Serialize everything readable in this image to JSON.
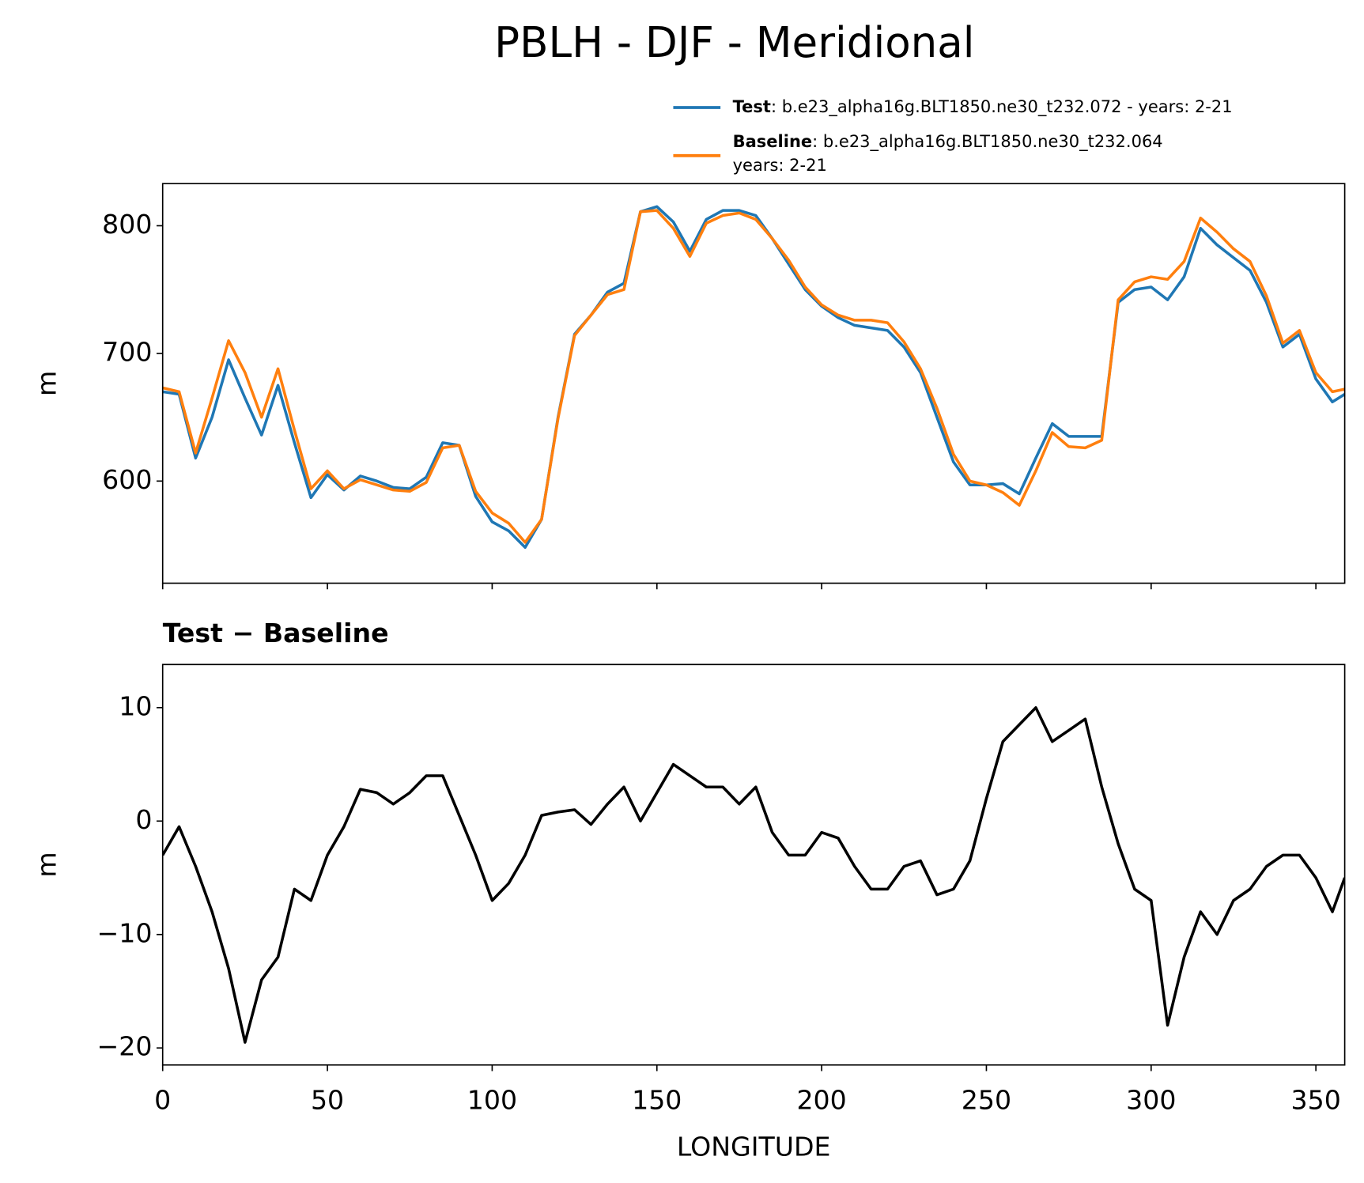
{
  "title": "PBLH - DJF - Meridional",
  "chart_data": [
    {
      "type": "line",
      "ylabel": "m",
      "xlim": [
        0,
        358.75
      ],
      "ylim": [
        520,
        833
      ],
      "xticks": [
        0,
        50,
        100,
        150,
        200,
        250,
        300,
        350
      ],
      "xtick_labels": false,
      "yticks": [
        600,
        700,
        800
      ],
      "x": [
        0,
        5,
        10,
        15,
        20,
        25,
        30,
        35,
        40,
        45,
        50,
        55,
        60,
        65,
        70,
        75,
        80,
        85,
        90,
        95,
        100,
        105,
        110,
        115,
        120,
        125,
        130,
        135,
        140,
        145,
        150,
        155,
        160,
        165,
        170,
        175,
        180,
        185,
        190,
        195,
        200,
        205,
        210,
        215,
        220,
        225,
        230,
        235,
        240,
        245,
        250,
        255,
        260,
        265,
        270,
        275,
        280,
        285,
        290,
        295,
        300,
        305,
        310,
        315,
        320,
        325,
        330,
        335,
        340,
        345,
        350,
        355,
        358.75
      ],
      "series": [
        {
          "name": "Test",
          "description": [
            ": b.e23_alpha16g.BLT1850.ne30_t232.072 - years: 2-21"
          ],
          "color": "#1f77b4",
          "values": [
            670,
            668,
            618,
            650,
            695,
            665,
            636,
            675,
            630,
            587,
            605,
            593,
            604,
            600,
            595,
            594,
            603,
            630,
            628,
            588,
            568,
            561,
            548,
            570,
            650,
            715,
            730,
            748,
            755,
            811,
            815,
            803,
            780,
            805,
            812,
            812,
            808,
            790,
            770,
            750,
            737,
            728,
            722,
            720,
            718,
            705,
            685,
            650,
            615,
            597,
            597,
            598,
            590,
            618,
            645,
            635,
            635,
            635,
            740,
            750,
            752,
            742,
            760,
            798,
            785,
            775,
            765,
            740,
            705,
            715,
            680,
            662,
            668
          ]
        },
        {
          "name": "Baseline",
          "description": [
            ": b.e23_alpha16g.BLT1850.ne30_t232.064",
            "years: 2-21"
          ],
          "color": "#ff7f0e",
          "values": [
            673,
            670,
            622,
            665,
            710,
            685,
            650,
            688,
            640,
            594,
            608,
            594,
            601,
            597,
            593,
            592,
            599,
            626,
            628,
            592,
            575,
            567,
            552,
            570,
            649,
            714,
            730,
            746,
            750,
            811,
            812,
            798,
            776,
            802,
            808,
            810,
            805,
            790,
            773,
            752,
            738,
            730,
            726,
            726,
            724,
            709,
            688,
            657,
            621,
            600,
            597,
            591,
            581,
            608,
            638,
            627,
            626,
            632,
            742,
            756,
            760,
            758,
            772,
            806,
            795,
            782,
            772,
            745,
            708,
            718,
            685,
            670,
            672
          ]
        }
      ]
    },
    {
      "type": "line",
      "title": "Test − Baseline",
      "ylabel": "m",
      "xlabel": "LONGITUDE",
      "xlim": [
        0,
        358.75
      ],
      "ylim": [
        -21.5,
        13.8
      ],
      "xticks": [
        0,
        50,
        100,
        150,
        200,
        250,
        300,
        350
      ],
      "xtick_labels": true,
      "yticks": [
        {
          "value": -20,
          "label": "−20"
        },
        {
          "value": -10,
          "label": "−10"
        },
        0,
        10
      ],
      "x": [
        0,
        5,
        10,
        15,
        20,
        25,
        30,
        35,
        40,
        45,
        50,
        55,
        60,
        65,
        70,
        75,
        80,
        85,
        90,
        95,
        100,
        105,
        110,
        115,
        120,
        125,
        130,
        135,
        140,
        145,
        150,
        155,
        160,
        165,
        170,
        175,
        180,
        185,
        190,
        195,
        200,
        205,
        210,
        215,
        220,
        225,
        230,
        235,
        240,
        245,
        250,
        255,
        260,
        265,
        270,
        275,
        280,
        285,
        290,
        295,
        300,
        305,
        310,
        315,
        320,
        325,
        330,
        335,
        340,
        345,
        350,
        355,
        358.75
      ],
      "series": [
        {
          "color": "#000000",
          "values": [
            -3,
            -0.5,
            -4,
            -8,
            -13,
            -19.5,
            -14,
            -12,
            -6,
            -7,
            -3,
            -0.5,
            2.8,
            2.5,
            1.5,
            2.5,
            4,
            4,
            0.5,
            -3,
            -7,
            -5.5,
            -3,
            0.5,
            0.8,
            1,
            -0.3,
            1.5,
            3,
            0,
            2.5,
            5,
            4,
            3,
            3,
            1.5,
            3,
            -1,
            -3,
            -3,
            -1,
            -1.5,
            -4,
            -6,
            -6,
            -4,
            -3.5,
            -6.5,
            -6,
            -3.5,
            2,
            7,
            8.5,
            10,
            7,
            8,
            9,
            3,
            -2,
            -6,
            -7,
            -18,
            -12,
            -8,
            -10,
            -7,
            -6,
            -4,
            -3,
            -3,
            -5,
            -8,
            -5
          ]
        }
      ]
    }
  ]
}
